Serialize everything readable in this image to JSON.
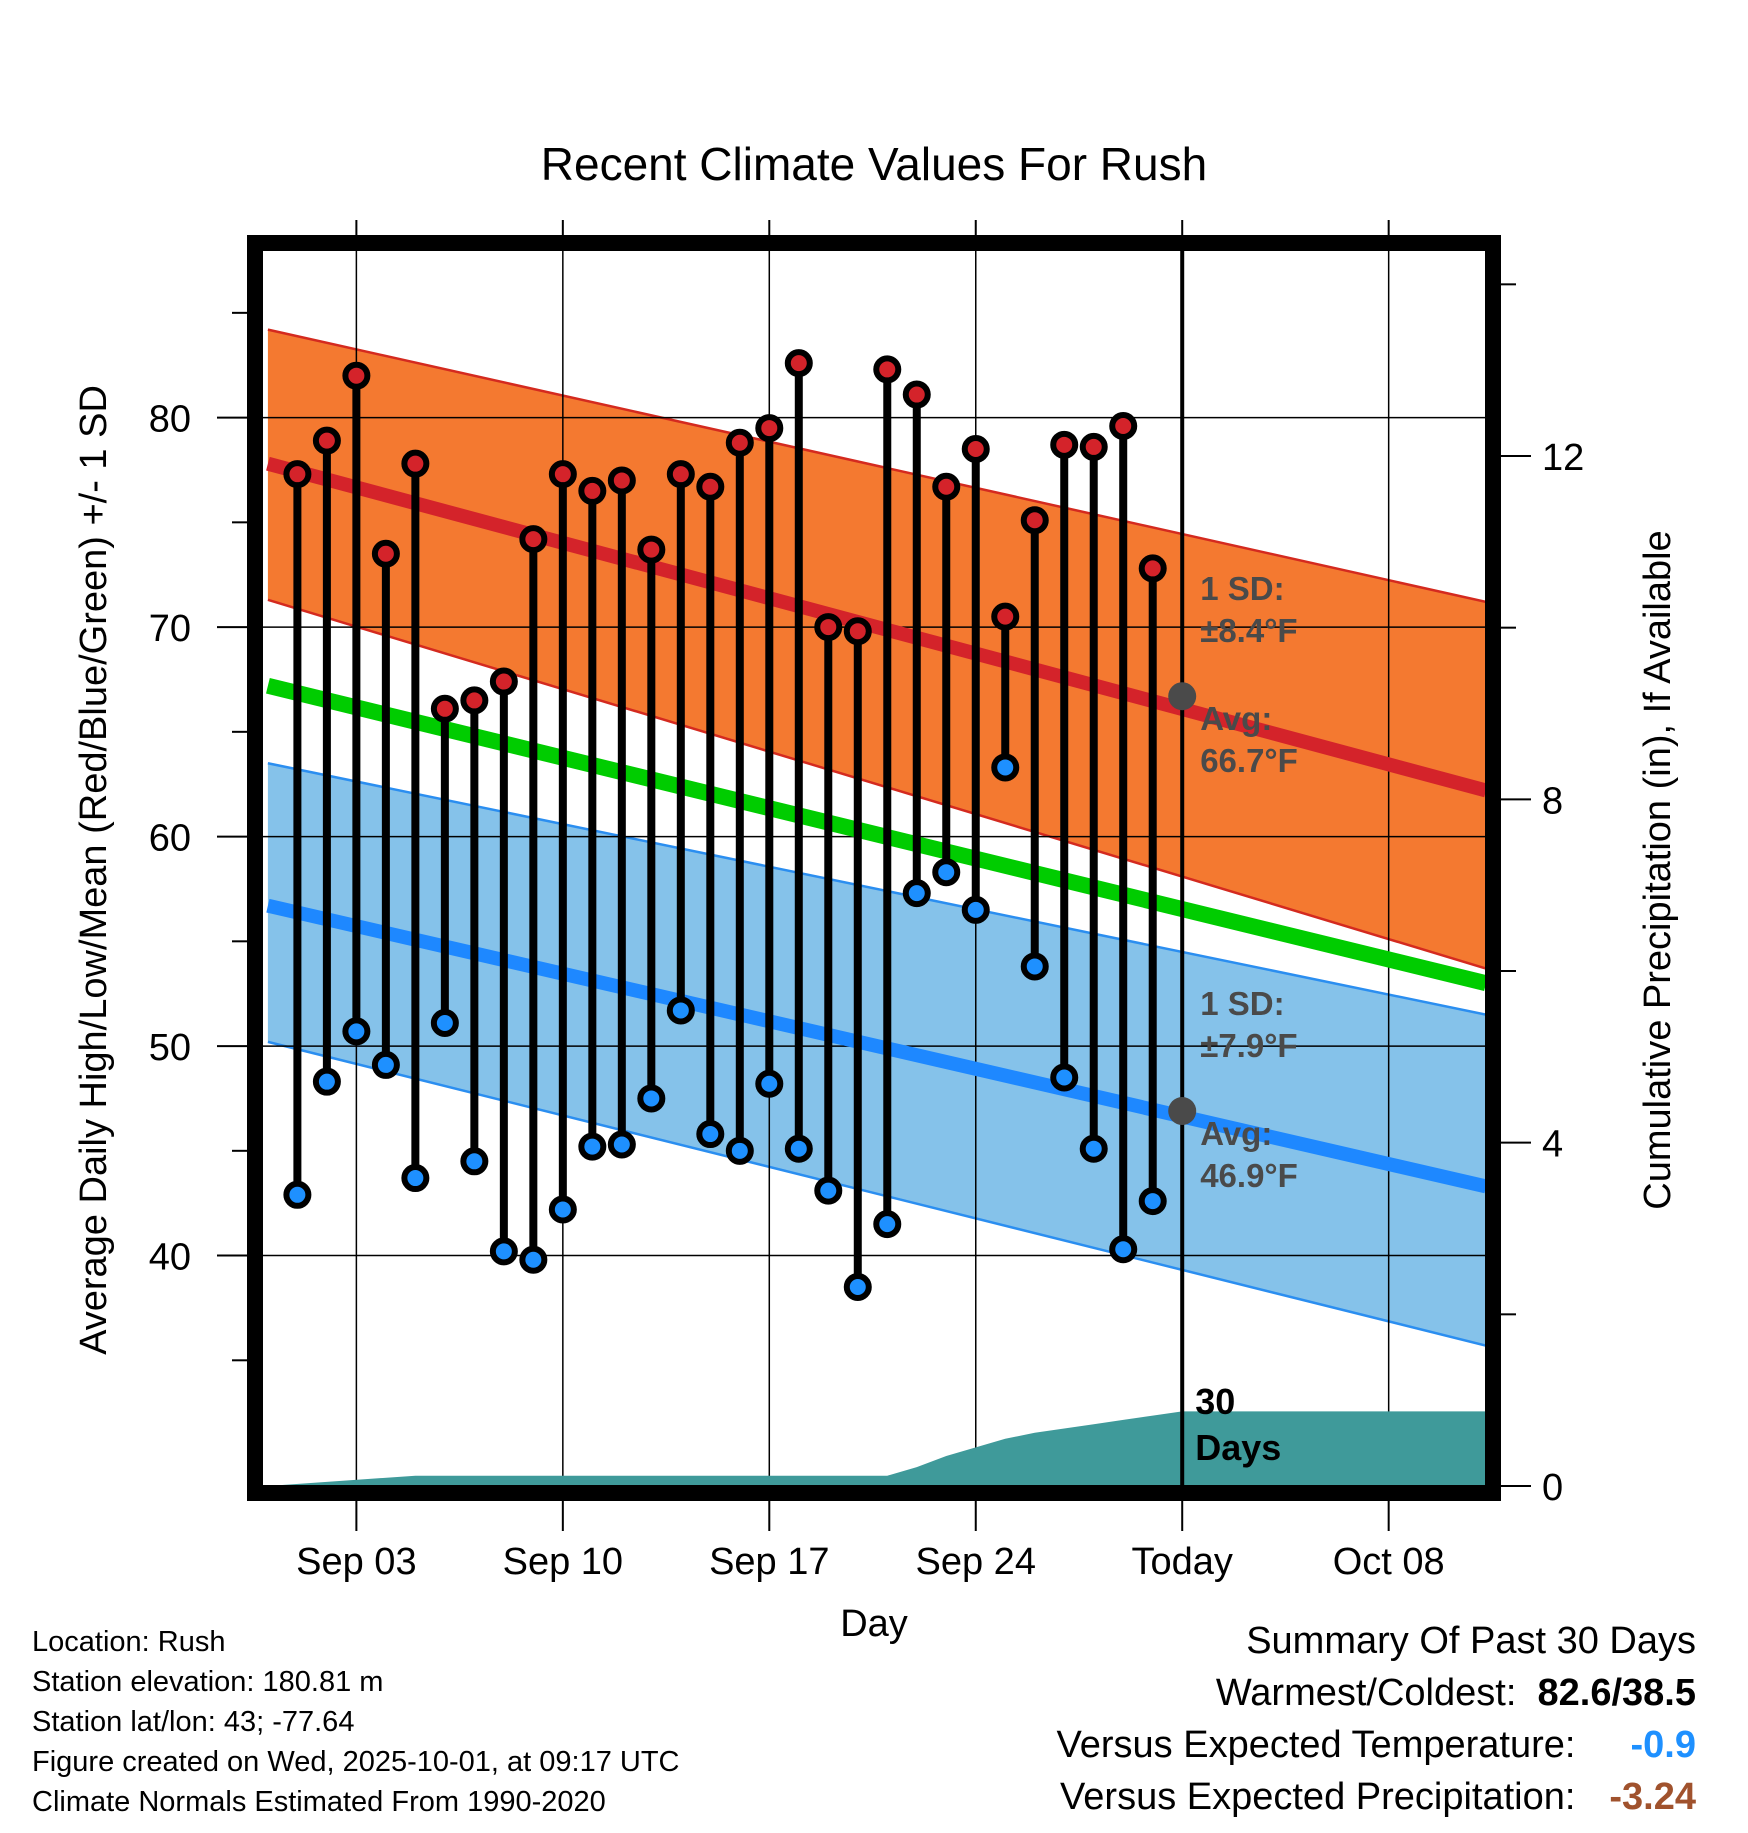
{
  "chart_data": {
    "type": "line",
    "title": "Recent Climate Values For Rush",
    "xlabel": "Day",
    "ylabel_left": "Average Daily High/Low/Mean (Red/Blue/Green) +/- 1 SD",
    "ylabel_right": "Cumulative Precipitation (in), If Available",
    "x_tick_labels": [
      "Sep 03",
      "Sep 10",
      "Sep 17",
      "Sep 24",
      "Today",
      "Oct 08"
    ],
    "x_tick_days": [
      3,
      10,
      17,
      24,
      31,
      38
    ],
    "xlim": [
      -0.2,
      41.3
    ],
    "ylim": [
      29,
      88
    ],
    "y_ticks_left": [
      40,
      50,
      60,
      70,
      80
    ],
    "ylim_right": [
      0,
      14.4
    ],
    "y_ticks_right": [
      0,
      4,
      8,
      12
    ],
    "today_day": 31,
    "today_label": "30\nDays",
    "normal_high": {
      "day": [
        0,
        41.3
      ],
      "avg": [
        77.8,
        62.2
      ],
      "upper": [
        84.2,
        71.2
      ],
      "lower": [
        71.3,
        53.7
      ],
      "sd_label": "1 SD:",
      "sd_value": "±8.4°F",
      "avg_label": "Avg:",
      "avg_value": "66.7°F",
      "today_value": 66.7
    },
    "normal_low": {
      "day": [
        0,
        41.3
      ],
      "avg": [
        56.7,
        43.3
      ],
      "upper": [
        63.5,
        51.5
      ],
      "lower": [
        50.2,
        35.7
      ],
      "sd_label": "1 SD:",
      "sd_value": "±7.9°F",
      "avg_label": "Avg:",
      "avg_value": "46.9°F",
      "today_value": 46.9
    },
    "normal_mean": {
      "day": [
        0,
        41.3
      ],
      "values": [
        67.2,
        53
      ]
    },
    "daily": {
      "day": [
        1,
        2,
        3,
        4,
        5,
        6,
        7,
        8,
        9,
        10,
        11,
        12,
        13,
        14,
        15,
        16,
        17,
        18,
        19,
        20,
        21,
        22,
        23,
        24,
        25,
        26,
        27,
        28,
        29,
        30
      ],
      "high": [
        77.3,
        78.9,
        82.0,
        73.5,
        77.8,
        66.1,
        66.5,
        67.4,
        74.2,
        77.3,
        76.5,
        77.0,
        73.7,
        77.3,
        76.7,
        78.8,
        79.5,
        82.6,
        70.0,
        69.8,
        82.3,
        81.1,
        76.7,
        78.5,
        70.5,
        75.1,
        78.7,
        78.6,
        79.6,
        72.8
      ],
      "low": [
        42.9,
        48.3,
        50.7,
        49.1,
        43.7,
        51.1,
        44.5,
        40.2,
        39.8,
        42.2,
        45.2,
        45.3,
        47.5,
        51.7,
        45.8,
        45.0,
        48.2,
        45.1,
        43.1,
        38.5,
        41.5,
        57.3,
        58.3,
        56.5,
        63.3,
        53.8,
        48.5,
        45.1,
        40.3,
        42.6
      ]
    },
    "precip": {
      "day": [
        0,
        5,
        21,
        22,
        23,
        24,
        25,
        26,
        27,
        28,
        29,
        30,
        31,
        41.3
      ],
      "cumulative": [
        0,
        0.12,
        0.12,
        0.22,
        0.35,
        0.45,
        0.55,
        0.62,
        0.67,
        0.72,
        0.77,
        0.82,
        0.87,
        0.87
      ]
    }
  },
  "colors": {
    "high_band": "#f47930",
    "high_band_edge": "#d42a1f",
    "high_avg": "#d4232a",
    "low_band": "#85c2ea",
    "low_band_edge": "#2b8ef0",
    "low_avg": "#1e88ff",
    "mean": "#00cc00",
    "precip": "#3f9a9a",
    "high_marker": "#d4232a",
    "low_marker": "#1e90ff",
    "annotation": "#4a4a4a",
    "temp_diff": "#1e90ff",
    "precip_diff": "#a0522d"
  },
  "info": {
    "location": "Location: Rush",
    "elevation": "Station elevation: 180.81 m",
    "latlon": "Station lat/lon: 43; -77.64",
    "created": "Figure created on Wed, 2025-10-01, at 09:17 UTC",
    "normals": "Climate Normals Estimated From 1990-2020"
  },
  "summary": {
    "title": "Summary Of Past 30 Days",
    "warm_cold_label": "Warmest/Coldest:",
    "warm_cold_value": "82.6/38.5",
    "temp_label": "Versus Expected Temperature:",
    "temp_value": "-0.9",
    "precip_label": "Versus Expected Precipitation:",
    "precip_value": "-3.24"
  }
}
